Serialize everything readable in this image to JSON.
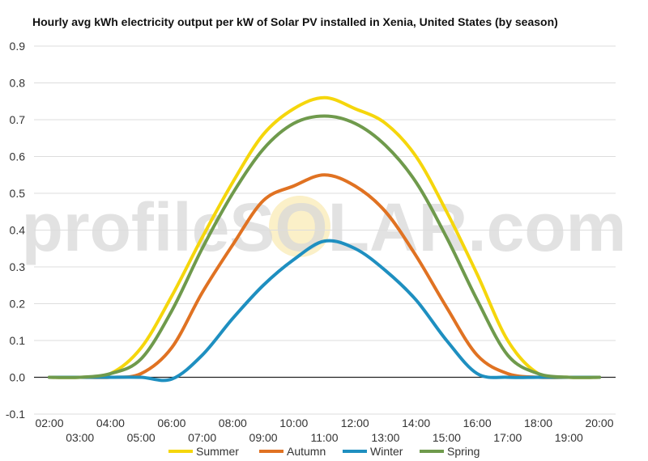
{
  "chart_data": {
    "type": "line",
    "title": "Hourly avg kWh electricity output per kW of Solar PV installed in Xenia, United States (by season)",
    "watermark": "profileSOLAR.com",
    "xlabel": "",
    "ylabel": "",
    "ylim": [
      -0.1,
      0.9
    ],
    "y_ticks": [
      "0.9",
      "0.8",
      "0.7",
      "0.6",
      "0.5",
      "0.4",
      "0.3",
      "0.2",
      "0.1",
      "0.0",
      "-0.1"
    ],
    "y_tick_values": [
      0.9,
      0.8,
      0.7,
      0.6,
      0.5,
      0.4,
      0.3,
      0.2,
      0.1,
      0.0,
      -0.1
    ],
    "x": [
      "02:00",
      "03:00",
      "04:00",
      "05:00",
      "06:00",
      "07:00",
      "08:00",
      "09:00",
      "10:00",
      "11:00",
      "12:00",
      "13:00",
      "14:00",
      "15:00",
      "16:00",
      "17:00",
      "18:00",
      "19:00",
      "20:00"
    ],
    "grid": true,
    "legend_position": "bottom",
    "series": [
      {
        "name": "Summer",
        "color": "#f5d60c",
        "values": [
          0,
          0,
          0.01,
          0.08,
          0.22,
          0.38,
          0.53,
          0.66,
          0.73,
          0.76,
          0.73,
          0.69,
          0.6,
          0.45,
          0.28,
          0.1,
          0.01,
          0,
          0
        ]
      },
      {
        "name": "Autumn",
        "color": "#e07222",
        "values": [
          0,
          0,
          0,
          0.01,
          0.08,
          0.23,
          0.36,
          0.48,
          0.52,
          0.55,
          0.52,
          0.45,
          0.33,
          0.19,
          0.06,
          0.01,
          0,
          0,
          0
        ]
      },
      {
        "name": "Winter",
        "color": "#1e8fc0",
        "values": [
          0,
          0,
          0,
          0,
          -0.005,
          0.06,
          0.16,
          0.25,
          0.32,
          0.37,
          0.35,
          0.29,
          0.21,
          0.1,
          0.01,
          0,
          0,
          0,
          0
        ]
      },
      {
        "name": "Spring",
        "color": "#6f9a4c",
        "values": [
          0,
          0,
          0.01,
          0.05,
          0.18,
          0.35,
          0.5,
          0.62,
          0.69,
          0.71,
          0.69,
          0.63,
          0.53,
          0.38,
          0.21,
          0.06,
          0.01,
          0,
          0
        ]
      }
    ]
  }
}
